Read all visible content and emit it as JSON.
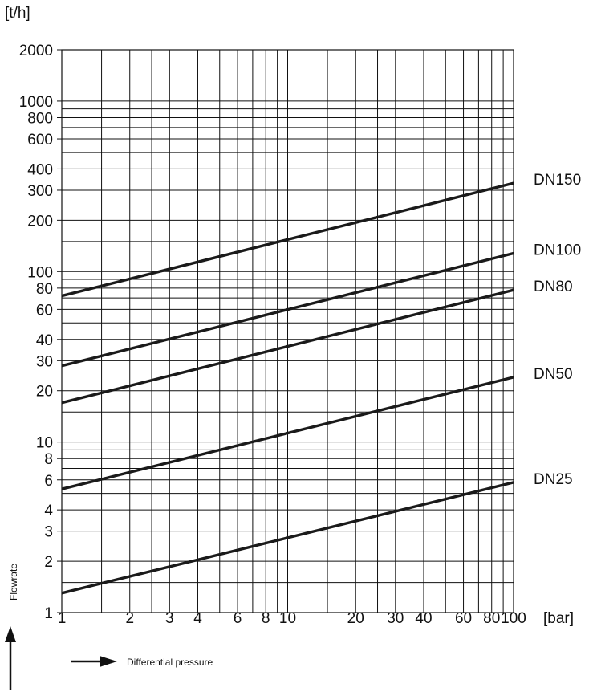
{
  "chart_data": {
    "type": "line",
    "x_scale": "log",
    "y_scale": "log",
    "xlim": [
      1,
      100
    ],
    "ylim": [
      1,
      2000
    ],
    "x_unit": "[bar]",
    "y_unit": "[t/h]",
    "x_ticks": [
      1,
      2,
      3,
      4,
      6,
      8,
      10,
      20,
      30,
      40,
      60,
      80,
      100
    ],
    "x_tick_labels": [
      "1",
      "2",
      "3",
      "4",
      "6",
      "8",
      "10",
      "20",
      "30",
      "40",
      "60",
      "80",
      "100"
    ],
    "y_ticks": [
      1,
      2,
      3,
      4,
      6,
      8,
      10,
      20,
      30,
      40,
      60,
      80,
      100,
      200,
      300,
      400,
      600,
      800,
      1000,
      2000
    ],
    "y_tick_labels": [
      "1",
      "2",
      "3",
      "4",
      "6",
      "8",
      "10",
      "20",
      "30",
      "40",
      "60",
      "80",
      "100",
      "200",
      "300",
      "400",
      "600",
      "800",
      "1000",
      "2000"
    ],
    "x_gridlines": [
      1,
      1.5,
      2,
      2.5,
      3,
      4,
      5,
      6,
      7,
      8,
      9,
      10,
      15,
      20,
      25,
      30,
      40,
      50,
      60,
      70,
      80,
      90,
      100
    ],
    "y_gridlines": [
      1,
      1.5,
      2,
      3,
      4,
      5,
      6,
      7,
      8,
      9,
      10,
      15,
      20,
      30,
      40,
      50,
      60,
      70,
      80,
      90,
      100,
      150,
      200,
      300,
      400,
      500,
      600,
      700,
      800,
      900,
      1000,
      1500,
      2000
    ],
    "grid": true,
    "legend": "labels at right end of lines",
    "xaxis_label": "Differential pressure",
    "yaxis_label": "Flowrate",
    "series": [
      {
        "name": "DN150",
        "x": [
          1,
          100
        ],
        "y": [
          72,
          330
        ]
      },
      {
        "name": "DN100",
        "x": [
          1,
          100
        ],
        "y": [
          28,
          128
        ]
      },
      {
        "name": "DN80",
        "x": [
          1,
          100
        ],
        "y": [
          17,
          78
        ]
      },
      {
        "name": "DN50",
        "x": [
          1,
          100
        ],
        "y": [
          5.3,
          24
        ]
      },
      {
        "name": "DN25",
        "x": [
          1,
          100
        ],
        "y": [
          1.3,
          5.8
        ]
      }
    ]
  }
}
